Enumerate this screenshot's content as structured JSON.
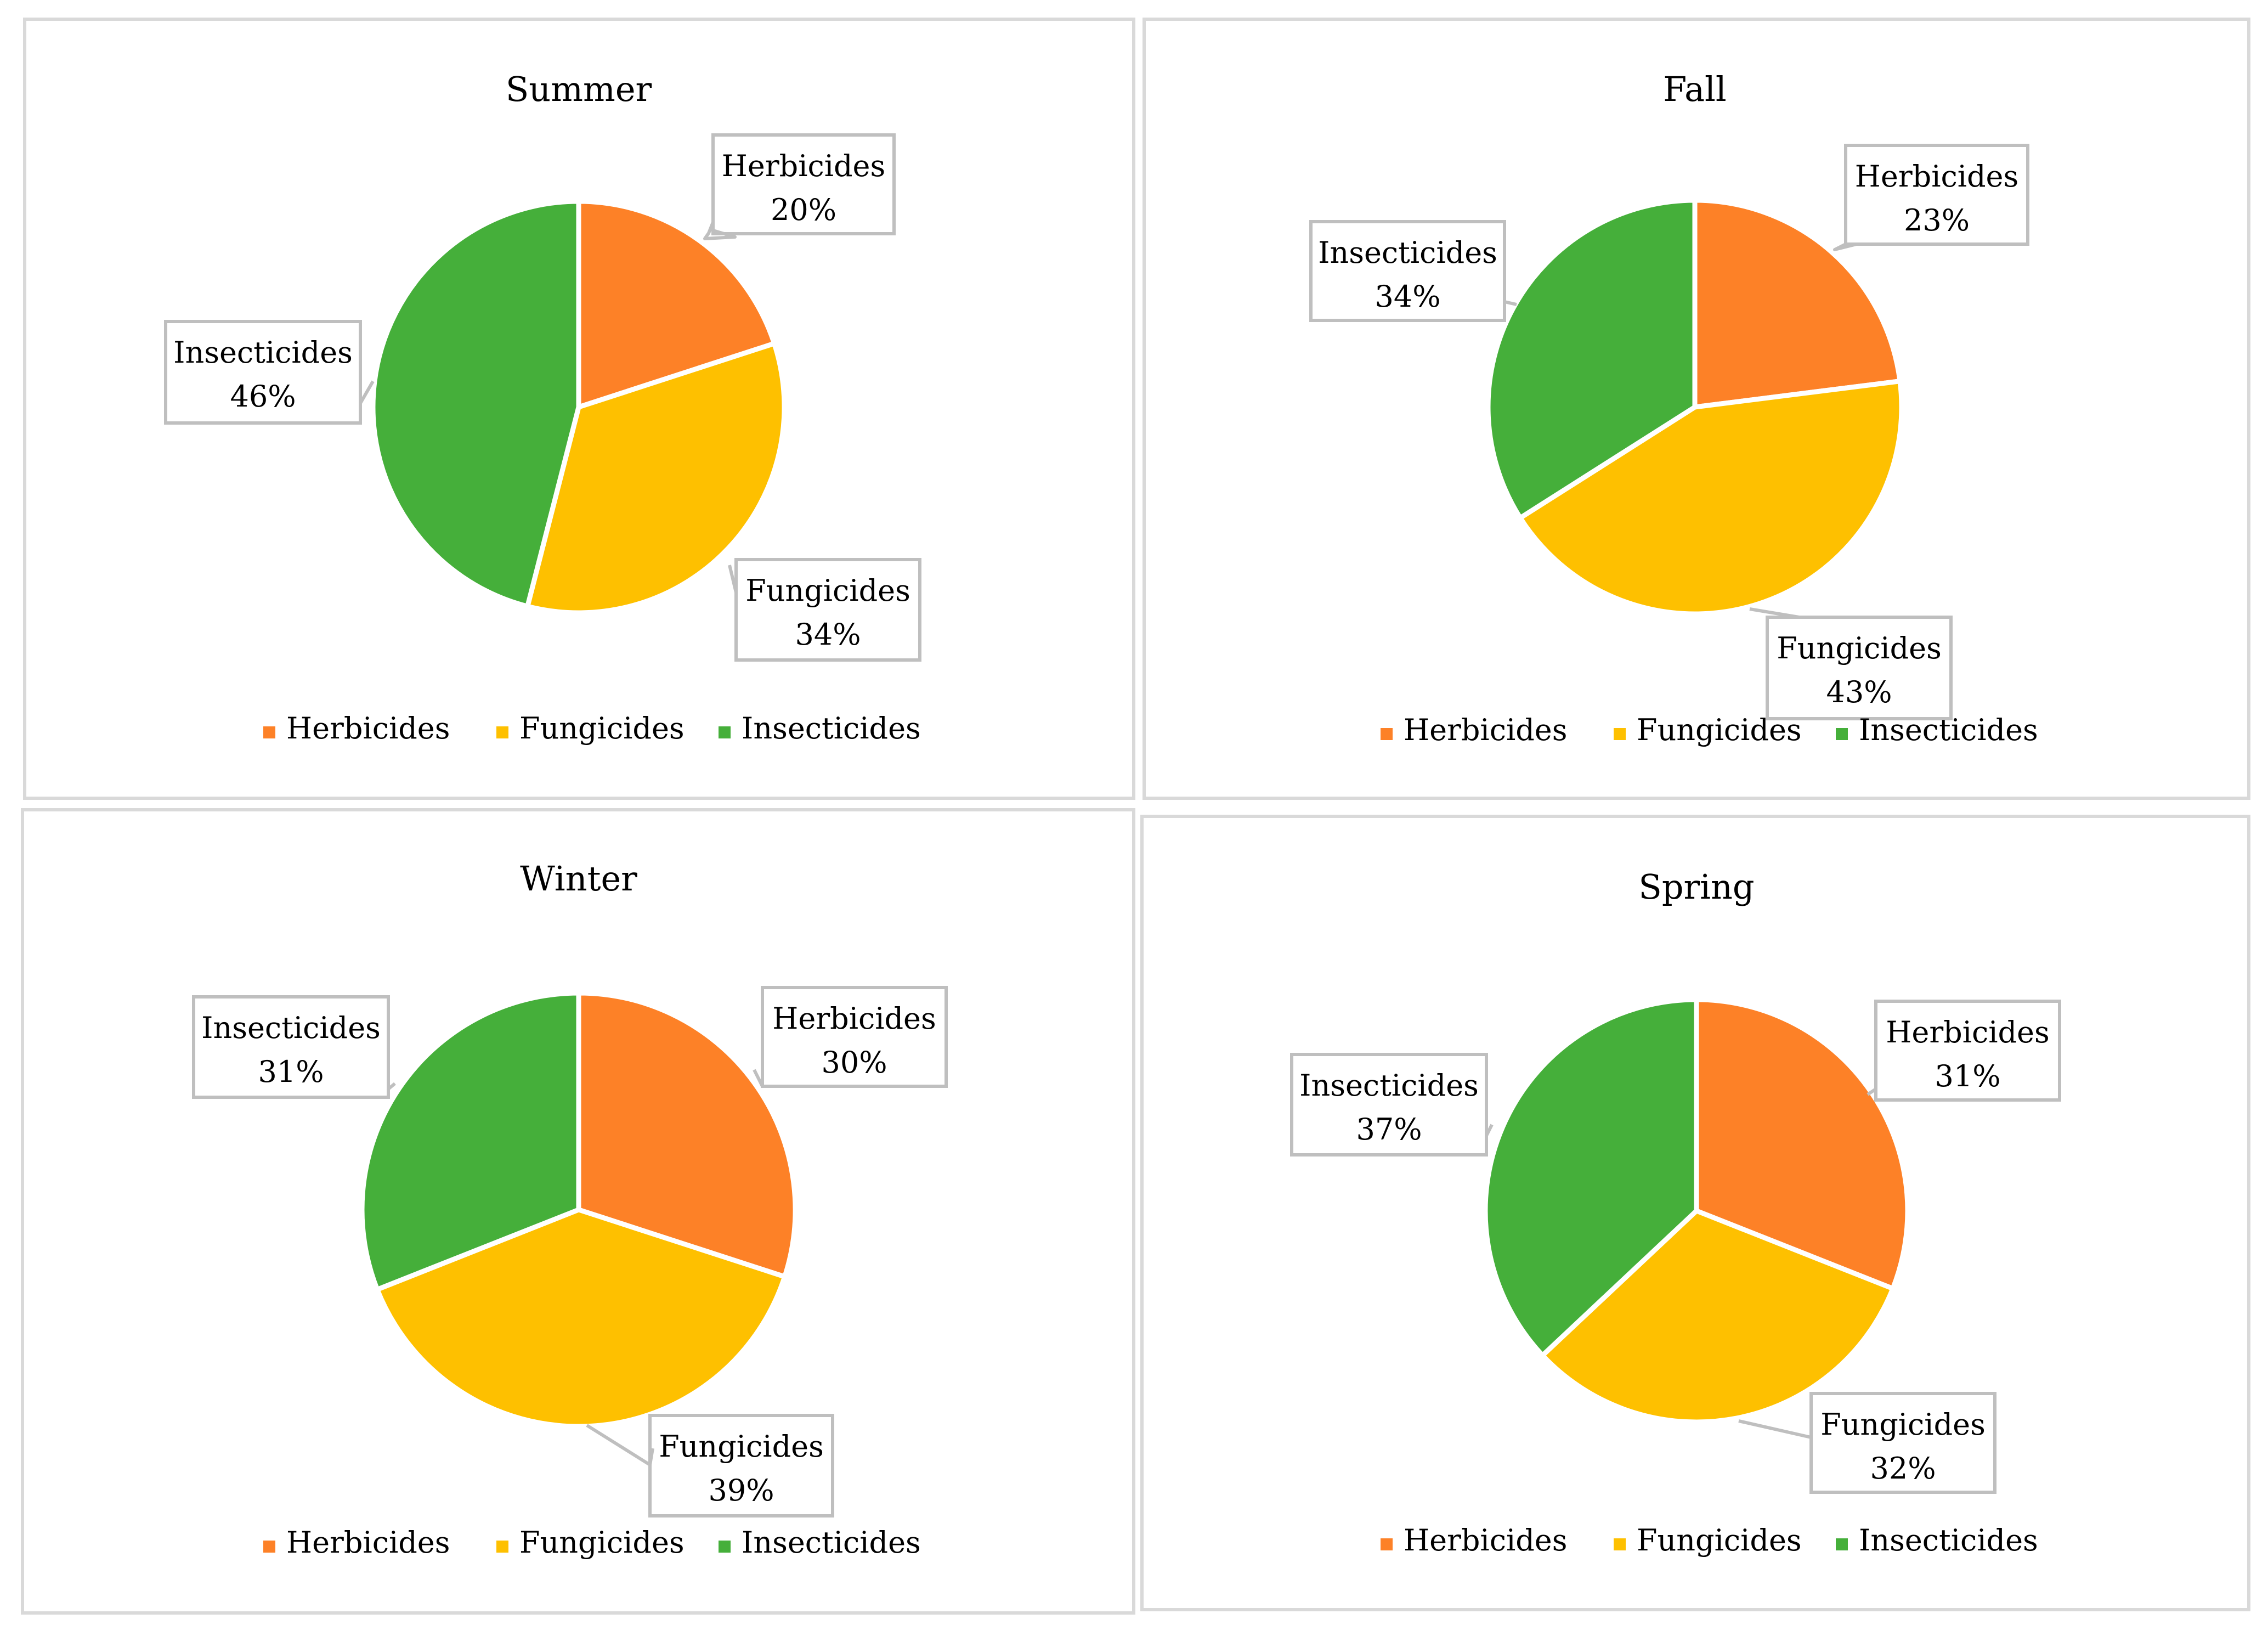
{
  "colors": {
    "Herbicides": "#FD8127",
    "Fungicides": "#FEC000",
    "Insecticides": "#45AF3A"
  },
  "chart_data": [
    {
      "type": "pie",
      "title": "Summer",
      "categories": [
        "Herbicides",
        "Fungicides",
        "Insecticides"
      ],
      "values": [
        20,
        34,
        46
      ],
      "labels": [
        "20%",
        "34%",
        "46%"
      ],
      "legend": [
        "Herbicides",
        "Fungicides",
        "Insecticides"
      ],
      "legend_position": "bottom"
    },
    {
      "type": "pie",
      "title": "Fall",
      "categories": [
        "Herbicides",
        "Fungicides",
        "Insecticides"
      ],
      "values": [
        23,
        43,
        34
      ],
      "labels": [
        "23%",
        "43%",
        "34%"
      ],
      "legend": [
        "Herbicides",
        "Fungicides",
        "Insecticides"
      ],
      "legend_position": "bottom"
    },
    {
      "type": "pie",
      "title": "Winter",
      "categories": [
        "Herbicides",
        "Fungicides",
        "Insecticides"
      ],
      "values": [
        30,
        39,
        31
      ],
      "labels": [
        "30%",
        "39%",
        "31%"
      ],
      "legend": [
        "Herbicides",
        "Fungicides",
        "Insecticides"
      ],
      "legend_position": "bottom"
    },
    {
      "type": "pie",
      "title": "Spring",
      "categories": [
        "Herbicides",
        "Fungicides",
        "Insecticides"
      ],
      "values": [
        31,
        32,
        37
      ],
      "labels": [
        "31%",
        "32%",
        "37%"
      ],
      "legend": [
        "Herbicides",
        "Fungicides",
        "Insecticides"
      ],
      "legend_position": "bottom"
    }
  ]
}
